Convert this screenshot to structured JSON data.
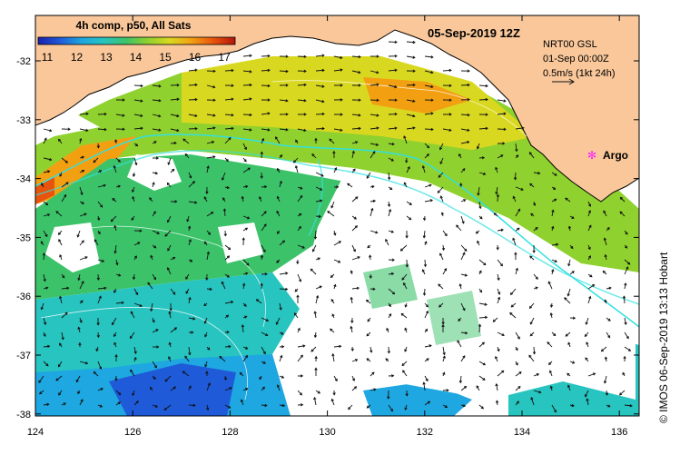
{
  "map": {
    "colorbar": {
      "title": "4h comp, p50, All Sats",
      "ticks": [
        "11",
        "12",
        "13",
        "14",
        "15",
        "16",
        "17"
      ],
      "colors": [
        "#1b1fb0",
        "#1f5ad8",
        "#1ea7e0",
        "#27c4c0",
        "#3cc36a",
        "#8fd12e",
        "#d9d820",
        "#f2a012",
        "#e8540c",
        "#b3150c"
      ]
    },
    "timestamp": "05-Sep-2019 12Z",
    "info_lines": [
      "NRT00 GSL",
      "01-Sep 00:00Z",
      "0.5m/s (1kt 24h)"
    ],
    "argo_label": "Argo",
    "credit": "© IMOS 06-Sep-2019 13:13 Hobart",
    "y_ticks": [
      "-32",
      "-33",
      "-34",
      "-35",
      "-36",
      "-37",
      "-38"
    ],
    "x_ticks": [
      "124",
      "126",
      "128",
      "130",
      "132",
      "134",
      "136"
    ],
    "colors": {
      "land": "#f9c79a",
      "no_data": "#ffffff",
      "contour": "#33e0e0",
      "argo": "#ff22ff",
      "arrow": "#111111"
    }
  }
}
